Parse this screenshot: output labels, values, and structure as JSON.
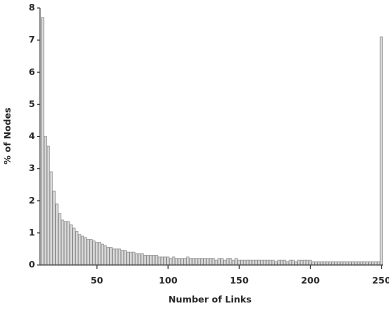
{
  "chart_data": {
    "type": "bar",
    "xlabel": "Number of Links",
    "ylabel": "% of Nodes",
    "x": [
      12,
      14,
      16,
      18,
      20,
      22,
      24,
      26,
      28,
      30,
      32,
      34,
      36,
      38,
      40,
      42,
      44,
      46,
      48,
      50,
      52,
      54,
      56,
      58,
      60,
      62,
      64,
      66,
      68,
      70,
      72,
      74,
      76,
      78,
      80,
      82,
      84,
      86,
      88,
      90,
      92,
      94,
      96,
      98,
      100,
      102,
      104,
      106,
      108,
      110,
      112,
      114,
      116,
      118,
      120,
      122,
      124,
      126,
      128,
      130,
      132,
      134,
      136,
      138,
      140,
      142,
      144,
      146,
      148,
      150,
      152,
      154,
      156,
      158,
      160,
      162,
      164,
      166,
      168,
      170,
      172,
      174,
      176,
      178,
      180,
      182,
      184,
      186,
      188,
      190,
      192,
      194,
      196,
      198,
      200,
      202,
      204,
      206,
      208,
      210,
      212,
      214,
      216,
      218,
      220,
      222,
      224,
      226,
      228,
      230,
      232,
      234,
      236,
      238,
      240,
      242,
      244,
      246,
      248,
      250
    ],
    "values": [
      7.7,
      4.0,
      3.7,
      2.9,
      2.3,
      1.9,
      1.6,
      1.4,
      1.35,
      1.35,
      1.25,
      1.15,
      1.05,
      0.95,
      0.9,
      0.85,
      0.8,
      0.8,
      0.75,
      0.7,
      0.7,
      0.65,
      0.6,
      0.55,
      0.55,
      0.5,
      0.5,
      0.5,
      0.45,
      0.45,
      0.4,
      0.4,
      0.4,
      0.35,
      0.35,
      0.35,
      0.3,
      0.3,
      0.3,
      0.3,
      0.3,
      0.25,
      0.25,
      0.25,
      0.25,
      0.2,
      0.25,
      0.2,
      0.2,
      0.2,
      0.2,
      0.25,
      0.2,
      0.2,
      0.2,
      0.2,
      0.2,
      0.2,
      0.2,
      0.2,
      0.2,
      0.15,
      0.2,
      0.2,
      0.15,
      0.2,
      0.2,
      0.15,
      0.2,
      0.15,
      0.15,
      0.15,
      0.15,
      0.15,
      0.15,
      0.15,
      0.15,
      0.15,
      0.15,
      0.15,
      0.15,
      0.15,
      0.1,
      0.15,
      0.15,
      0.15,
      0.1,
      0.15,
      0.15,
      0.1,
      0.15,
      0.15,
      0.15,
      0.15,
      0.15,
      0.1,
      0.1,
      0.1,
      0.1,
      0.1,
      0.1,
      0.1,
      0.1,
      0.1,
      0.1,
      0.1,
      0.1,
      0.1,
      0.1,
      0.1,
      0.1,
      0.1,
      0.1,
      0.1,
      0.1,
      0.1,
      0.1,
      0.1,
      0.1,
      7.1
    ],
    "color": "#dcdcdc",
    "bar_width": 2,
    "xlim": [
      10,
      251
    ],
    "xticks": [
      50,
      100,
      150,
      200,
      250
    ],
    "ylim": [
      0,
      8
    ],
    "yticks": [
      0,
      1,
      2,
      3,
      4,
      5,
      6,
      7,
      8
    ],
    "grid": false
  }
}
